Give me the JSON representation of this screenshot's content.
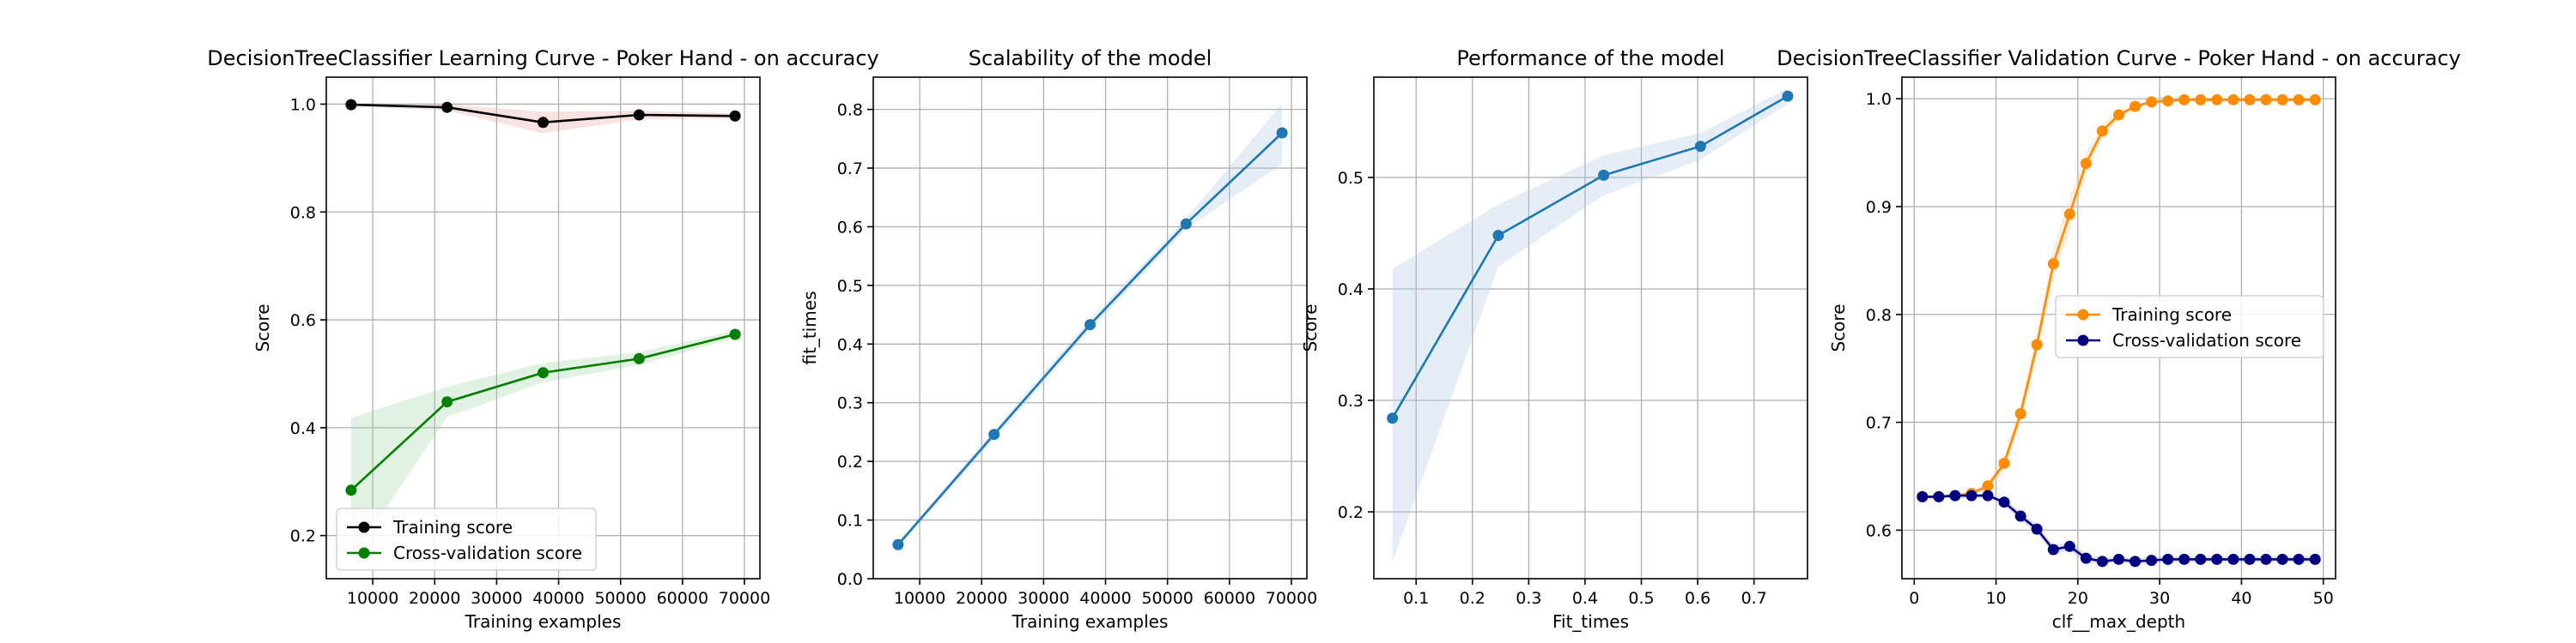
{
  "chart_data": [
    {
      "type": "line",
      "title": "DecisionTreeClassifier Learning Curve - Poker Hand - on accuracy",
      "xlabel": "Training examples",
      "ylabel": "Score",
      "xlim": [
        2500,
        72500
      ],
      "ylim": [
        0.12,
        1.05
      ],
      "xticks": [
        10000,
        20000,
        30000,
        40000,
        50000,
        60000,
        70000
      ],
      "xtick_labels": [
        "10000",
        "20000",
        "30000",
        "40000",
        "50000",
        "60000",
        "70000"
      ],
      "yticks": [
        0.2,
        0.4,
        0.6,
        0.8,
        1.0
      ],
      "ytick_labels": [
        "0.2",
        "0.4",
        "0.6",
        "0.8",
        "1.0"
      ],
      "grid": true,
      "legend": "lower-right",
      "x": [
        6500,
        22000,
        37500,
        53000,
        68500
      ],
      "series": [
        {
          "name": "Training score",
          "color": "#000000",
          "values": [
            0.999,
            0.994,
            0.966,
            0.98,
            0.978
          ],
          "band_lo": [
            0.996,
            0.988,
            0.946,
            0.972,
            0.973
          ],
          "band_hi": [
            1.0,
            1.0,
            0.986,
            0.988,
            0.983
          ],
          "band_color": "#e8a0a0"
        },
        {
          "name": "Cross-validation score",
          "color": "#008000",
          "values": [
            0.284,
            0.448,
            0.502,
            0.528,
            0.573
          ],
          "band_lo": [
            0.155,
            0.42,
            0.484,
            0.516,
            0.566
          ],
          "band_hi": [
            0.418,
            0.476,
            0.52,
            0.54,
            0.58
          ],
          "band_color": "#9fd49f"
        }
      ]
    },
    {
      "type": "line",
      "title": "Scalability of the model",
      "xlabel": "Training examples",
      "ylabel": "fit_times",
      "xlim": [
        2500,
        72500
      ],
      "ylim": [
        0.0,
        0.855
      ],
      "xticks": [
        10000,
        20000,
        30000,
        40000,
        50000,
        60000,
        70000
      ],
      "xtick_labels": [
        "10000",
        "20000",
        "30000",
        "40000",
        "50000",
        "60000",
        "70000"
      ],
      "yticks": [
        0.0,
        0.1,
        0.2,
        0.3,
        0.4,
        0.5,
        0.6,
        0.7,
        0.8
      ],
      "ytick_labels": [
        "0.0",
        "0.1",
        "0.2",
        "0.3",
        "0.4",
        "0.5",
        "0.6",
        "0.7",
        "0.8"
      ],
      "grid": true,
      "x": [
        6500,
        22000,
        37500,
        53000,
        68500
      ],
      "series": [
        {
          "name": "",
          "color": "#1f77b4",
          "values": [
            0.058,
            0.246,
            0.433,
            0.605,
            0.76
          ],
          "band_lo": [
            0.053,
            0.238,
            0.424,
            0.596,
            0.707
          ],
          "band_hi": [
            0.063,
            0.254,
            0.442,
            0.614,
            0.81
          ],
          "band_color": "#a9c8e6"
        }
      ]
    },
    {
      "type": "line",
      "title": "Performance of the model",
      "xlabel": "Fit_times",
      "ylabel": "Score",
      "xlim": [
        0.025,
        0.795
      ],
      "ylim": [
        0.14,
        0.59
      ],
      "xticks": [
        0.1,
        0.2,
        0.3,
        0.4,
        0.5,
        0.6,
        0.7
      ],
      "xtick_labels": [
        "0.1",
        "0.2",
        "0.3",
        "0.4",
        "0.5",
        "0.6",
        "0.7"
      ],
      "yticks": [
        0.2,
        0.3,
        0.4,
        0.5
      ],
      "ytick_labels": [
        "0.2",
        "0.3",
        "0.4",
        "0.5"
      ],
      "grid": true,
      "x": [
        0.058,
        0.246,
        0.433,
        0.605,
        0.76
      ],
      "series": [
        {
          "name": "",
          "color": "#1f77b4",
          "values": [
            0.284,
            0.448,
            0.502,
            0.528,
            0.573
          ],
          "band_lo": [
            0.155,
            0.42,
            0.484,
            0.516,
            0.566
          ],
          "band_hi": [
            0.418,
            0.476,
            0.52,
            0.54,
            0.58
          ],
          "band_color": "#a9c8e6"
        }
      ]
    },
    {
      "type": "line",
      "title": "DecisionTreeClassifier Validation Curve - Poker Hand - on accuracy",
      "xlabel": "clf__max_depth",
      "ylabel": "Score",
      "xlim": [
        -1.5,
        51.5
      ],
      "ylim": [
        0.555,
        1.02
      ],
      "xticks": [
        0,
        10,
        20,
        30,
        40,
        50
      ],
      "xtick_labels": [
        "0",
        "10",
        "20",
        "30",
        "40",
        "50"
      ],
      "yticks": [
        0.6,
        0.7,
        0.8,
        0.9,
        1.0
      ],
      "ytick_labels": [
        "0.6",
        "0.7",
        "0.8",
        "0.9",
        "1.0"
      ],
      "grid": true,
      "legend": "center-right",
      "x": [
        1,
        3,
        5,
        7,
        9,
        11,
        13,
        15,
        17,
        19,
        21,
        23,
        25,
        27,
        29,
        31,
        33,
        35,
        37,
        39,
        41,
        43,
        45,
        47,
        49
      ],
      "series": [
        {
          "name": "Training score",
          "color": "#ff8c00",
          "values": [
            0.631,
            0.631,
            0.632,
            0.634,
            0.641,
            0.662,
            0.708,
            0.772,
            0.847,
            0.893,
            0.94,
            0.97,
            0.985,
            0.993,
            0.997,
            0.998,
            0.999,
            0.999,
            0.999,
            0.999,
            0.999,
            0.999,
            0.999,
            0.999,
            0.999
          ],
          "band_lo": [
            0.63,
            0.63,
            0.631,
            0.632,
            0.637,
            0.655,
            0.698,
            0.76,
            0.832,
            0.878,
            0.93,
            0.964,
            0.981,
            0.991,
            0.996,
            0.997,
            0.998,
            0.998,
            0.998,
            0.998,
            0.998,
            0.998,
            0.998,
            0.998,
            0.998
          ],
          "band_hi": [
            0.632,
            0.632,
            0.633,
            0.636,
            0.645,
            0.669,
            0.718,
            0.784,
            0.862,
            0.908,
            0.95,
            0.976,
            0.989,
            0.995,
            0.998,
            0.999,
            1.0,
            1.0,
            1.0,
            1.0,
            1.0,
            1.0,
            1.0,
            1.0,
            1.0
          ],
          "band_color": "#f5c896"
        },
        {
          "name": "Cross-validation score",
          "color": "#000080",
          "values": [
            0.631,
            0.631,
            0.632,
            0.632,
            0.632,
            0.626,
            0.613,
            0.601,
            0.582,
            0.585,
            0.574,
            0.571,
            0.573,
            0.571,
            0.572,
            0.573,
            0.573,
            0.573,
            0.573,
            0.573,
            0.573,
            0.573,
            0.573,
            0.573,
            0.573
          ],
          "band_lo": [
            0.629,
            0.629,
            0.63,
            0.63,
            0.63,
            0.623,
            0.609,
            0.597,
            0.578,
            0.581,
            0.57,
            0.568,
            0.57,
            0.568,
            0.569,
            0.57,
            0.57,
            0.57,
            0.57,
            0.57,
            0.57,
            0.57,
            0.57,
            0.57,
            0.57
          ],
          "band_hi": [
            0.633,
            0.633,
            0.634,
            0.634,
            0.634,
            0.629,
            0.617,
            0.605,
            0.586,
            0.589,
            0.578,
            0.574,
            0.576,
            0.574,
            0.575,
            0.576,
            0.576,
            0.576,
            0.576,
            0.576,
            0.576,
            0.576,
            0.576,
            0.576,
            0.576
          ],
          "band_color": "#9b9bcf"
        }
      ]
    }
  ]
}
